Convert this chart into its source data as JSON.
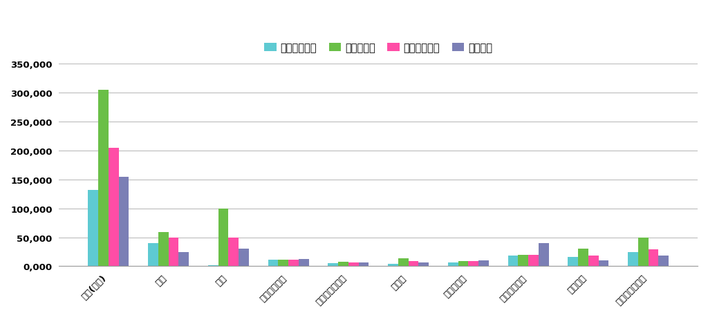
{
  "categories": [
    "合計(月間)",
    "食費",
    "住居",
    "光熱・水道費",
    "家具・家事用品",
    "被服費",
    "保険医療費",
    "交通・通信費",
    "教養娯楽",
    "その他消費支出"
  ],
  "series": [
    {
      "label": "総務省データ",
      "color": "#5ecad2",
      "values": [
        132000,
        40000,
        2000,
        11000,
        5000,
        4000,
        7000,
        18000,
        16000,
        25000
      ]
    },
    {
      "label": "大都会独身",
      "color": "#6abf47",
      "values": [
        305000,
        59000,
        100000,
        11000,
        8000,
        14000,
        9000,
        20000,
        30000,
        50000
      ]
    },
    {
      "label": "地方都市独身",
      "color": "#ff4da6",
      "values": [
        205000,
        50000,
        49000,
        11000,
        6000,
        9000,
        9000,
        20000,
        19000,
        29000
      ]
    },
    {
      "label": "田舎独身",
      "color": "#7b7fb5",
      "values": [
        155000,
        25000,
        30000,
        12000,
        7000,
        7000,
        10000,
        40000,
        10000,
        19000
      ]
    }
  ],
  "ylim": [
    0,
    350000
  ],
  "yticks": [
    0,
    50000,
    100000,
    150000,
    200000,
    250000,
    300000,
    350000
  ],
  "ytick_labels": [
    "0,000",
    "50,000",
    "100,000",
    "150,000",
    "200,000",
    "250,000",
    "300,000",
    "350,000"
  ],
  "background_color": "#ffffff",
  "grid_color": "#bbbbbb",
  "bar_width": 0.17
}
